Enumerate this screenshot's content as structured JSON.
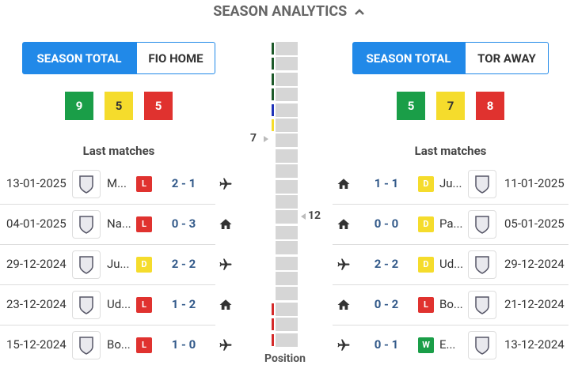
{
  "header": {
    "title": "SEASON ANALYTICS"
  },
  "left": {
    "tabs": [
      "SEASON TOTAL",
      "FIO HOME"
    ],
    "counts": [
      9,
      5,
      5
    ],
    "last_matches_title": "Last matches",
    "matches": [
      {
        "date": "13-01-2025",
        "team": "M...",
        "result": "L",
        "score": "2 - 1",
        "venue": "away"
      },
      {
        "date": "04-01-2025",
        "team": "Na...",
        "result": "L",
        "score": "0 - 3",
        "venue": "home"
      },
      {
        "date": "29-12-2024",
        "team": "Ju...",
        "result": "D",
        "score": "2 - 2",
        "venue": "away"
      },
      {
        "date": "23-12-2024",
        "team": "Ud...",
        "result": "L",
        "score": "1 - 2",
        "venue": "home"
      },
      {
        "date": "15-12-2024",
        "team": "Bo...",
        "result": "L",
        "score": "1 - 0",
        "venue": "away"
      }
    ]
  },
  "right": {
    "tabs": [
      "SEASON TOTAL",
      "TOR AWAY"
    ],
    "counts": [
      5,
      7,
      8
    ],
    "last_matches_title": "Last matches",
    "matches": [
      {
        "date": "11-01-2025",
        "team": "Ju...",
        "result": "D",
        "score": "1 - 1",
        "venue": "home"
      },
      {
        "date": "05-01-2025",
        "team": "Pa...",
        "result": "D",
        "score": "0 - 0",
        "venue": "home"
      },
      {
        "date": "29-12-2024",
        "team": "Ud...",
        "result": "D",
        "score": "2 - 2",
        "venue": "away"
      },
      {
        "date": "21-12-2024",
        "team": "Bo...",
        "result": "L",
        "score": "0 - 2",
        "venue": "home"
      },
      {
        "date": "13-12-2024",
        "team": "E...",
        "result": "W",
        "score": "0 - 1",
        "venue": "away"
      }
    ]
  },
  "position": {
    "label": "Position",
    "left": 7,
    "right": 12
  }
}
